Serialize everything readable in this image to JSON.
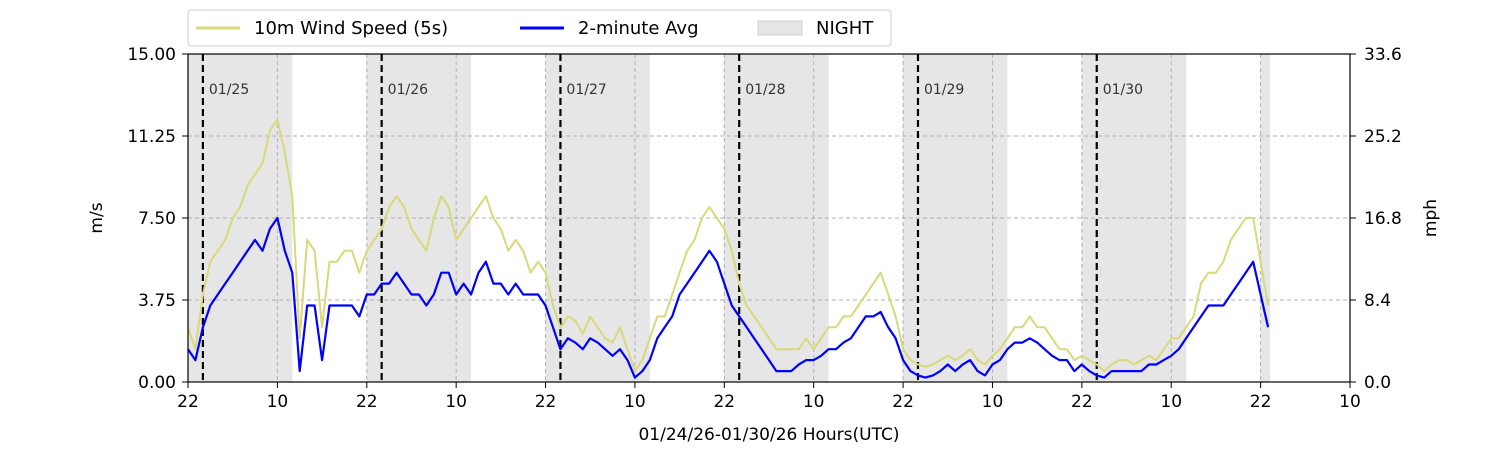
{
  "chart_data": {
    "type": "line",
    "x_title": "01/24/26-01/30/26  Hours(UTC)",
    "y_left_title": "m/s",
    "y_right_title": "mph",
    "ylim": [
      0,
      15
    ],
    "y_left_ticks": [
      "0.00",
      "3.75",
      "7.50",
      "11.25",
      "15.00"
    ],
    "y_right_ticks": [
      "0.0",
      "8.4",
      "16.8",
      "25.2",
      "33.6"
    ],
    "x_tick_labels": [
      "22",
      "10",
      "22",
      "10",
      "22",
      "10",
      "22",
      "10",
      "22",
      "10",
      "22",
      "10",
      "22",
      "10"
    ],
    "grid": true,
    "legend_position": "top-left (above plot)",
    "legend": [
      {
        "label": "10m Wind Speed (5s)",
        "color": "#d9d87a",
        "kind": "line"
      },
      {
        "label": "2-minute Avg",
        "color": "#0000ff",
        "kind": "line"
      },
      {
        "label": "NIGHT",
        "color": "#e6e6e6",
        "kind": "patch"
      }
    ],
    "day_markers": [
      {
        "label": "01/25",
        "day_offset": 2
      },
      {
        "label": "01/26",
        "day_offset": 26
      },
      {
        "label": "01/27",
        "day_offset": 50
      },
      {
        "label": "01/28",
        "day_offset": 74
      },
      {
        "label": "01/29",
        "day_offset": 98
      },
      {
        "label": "01/30",
        "day_offset": 122
      }
    ],
    "night_periods_hours": [
      [
        0,
        14
      ],
      [
        24,
        38
      ],
      [
        48,
        62
      ],
      [
        72,
        86
      ],
      [
        96,
        110
      ],
      [
        120,
        134
      ],
      [
        144,
        145.3
      ]
    ],
    "x_range_hours": [
      0,
      156
    ],
    "series": [
      {
        "name": "10m Wind Speed (5s)",
        "color": "#d9d87a",
        "x_hours": [
          0,
          1,
          2,
          3,
          4,
          5,
          6,
          7,
          8,
          9,
          10,
          11,
          12,
          13,
          14,
          15,
          16,
          17,
          18,
          19,
          20,
          21,
          22,
          23,
          24,
          25,
          26,
          27,
          28,
          29,
          30,
          31,
          32,
          33,
          34,
          35,
          36,
          37,
          38,
          39,
          40,
          41,
          42,
          43,
          44,
          45,
          46,
          47,
          48,
          49,
          50,
          51,
          52,
          53,
          54,
          55,
          56,
          57,
          58,
          59,
          60,
          61,
          62,
          63,
          64,
          65,
          66,
          67,
          68,
          69,
          70,
          71,
          72,
          73,
          74,
          75,
          76,
          77,
          78,
          79,
          80,
          81,
          82,
          83,
          84,
          85,
          86,
          87,
          88,
          89,
          90,
          91,
          92,
          93,
          94,
          95,
          96,
          97,
          98,
          99,
          100,
          101,
          102,
          103,
          104,
          105,
          106,
          107,
          108,
          109,
          110,
          111,
          112,
          113,
          114,
          115,
          116,
          117,
          118,
          119,
          120,
          121,
          122,
          123,
          124,
          125,
          126,
          127,
          128,
          129,
          130,
          131,
          132,
          133,
          134,
          135,
          136,
          137,
          138,
          139,
          140,
          141,
          142,
          143,
          144,
          145
        ],
        "values": [
          2.5,
          1.5,
          4.0,
          5.5,
          6.0,
          6.5,
          7.5,
          8.0,
          9.0,
          9.5,
          10.0,
          11.5,
          12.0,
          10.5,
          8.5,
          2.0,
          6.5,
          6.0,
          2.5,
          5.5,
          5.5,
          6.0,
          6.0,
          5.0,
          6.0,
          6.5,
          7.0,
          8.0,
          8.5,
          8.0,
          7.0,
          6.5,
          6.0,
          7.5,
          8.5,
          8.0,
          6.5,
          7.0,
          7.5,
          8.0,
          8.5,
          7.5,
          7.0,
          6.0,
          6.5,
          6.0,
          5.0,
          5.5,
          5.0,
          3.5,
          2.5,
          3.0,
          2.8,
          2.2,
          3.0,
          2.5,
          2.0,
          1.8,
          2.5,
          1.5,
          0.5,
          1.0,
          2.0,
          3.0,
          3.0,
          4.0,
          5.0,
          6.0,
          6.5,
          7.5,
          8.0,
          7.5,
          7.0,
          6.0,
          4.5,
          3.5,
          3.0,
          2.5,
          2.0,
          1.5,
          1.5,
          1.5,
          1.5,
          2.0,
          1.5,
          2.0,
          2.5,
          2.5,
          3.0,
          3.0,
          3.5,
          4.0,
          4.5,
          5.0,
          4.0,
          3.0,
          1.5,
          1.0,
          0.8,
          0.7,
          0.8,
          1.0,
          1.2,
          1.0,
          1.2,
          1.5,
          1.0,
          0.8,
          1.2,
          1.5,
          2.0,
          2.5,
          2.5,
          3.0,
          2.5,
          2.5,
          2.0,
          1.5,
          1.5,
          1.0,
          1.2,
          1.0,
          0.8,
          0.5,
          0.8,
          1.0,
          1.0,
          0.8,
          1.0,
          1.2,
          1.0,
          1.5,
          2.0,
          2.0,
          2.5,
          3.0,
          4.5,
          5.0,
          5.0,
          5.5,
          6.5,
          7.0,
          7.5,
          7.5,
          5.5,
          3.5
        ]
      },
      {
        "name": "2-minute Avg",
        "color": "#0000ff",
        "x_hours": [
          0,
          1,
          2,
          3,
          4,
          5,
          6,
          7,
          8,
          9,
          10,
          11,
          12,
          13,
          14,
          15,
          16,
          17,
          18,
          19,
          20,
          21,
          22,
          23,
          24,
          25,
          26,
          27,
          28,
          29,
          30,
          31,
          32,
          33,
          34,
          35,
          36,
          37,
          38,
          39,
          40,
          41,
          42,
          43,
          44,
          45,
          46,
          47,
          48,
          49,
          50,
          51,
          52,
          53,
          54,
          55,
          56,
          57,
          58,
          59,
          60,
          61,
          62,
          63,
          64,
          65,
          66,
          67,
          68,
          69,
          70,
          71,
          72,
          73,
          74,
          75,
          76,
          77,
          78,
          79,
          80,
          81,
          82,
          83,
          84,
          85,
          86,
          87,
          88,
          89,
          90,
          91,
          92,
          93,
          94,
          95,
          96,
          97,
          98,
          99,
          100,
          101,
          102,
          103,
          104,
          105,
          106,
          107,
          108,
          109,
          110,
          111,
          112,
          113,
          114,
          115,
          116,
          117,
          118,
          119,
          120,
          121,
          122,
          123,
          124,
          125,
          126,
          127,
          128,
          129,
          130,
          131,
          132,
          133,
          134,
          135,
          136,
          137,
          138,
          139,
          140,
          141,
          142,
          143,
          144,
          145
        ],
        "values": [
          1.5,
          1.0,
          2.5,
          3.5,
          4.0,
          4.5,
          5.0,
          5.5,
          6.0,
          6.5,
          6.0,
          7.0,
          7.5,
          6.0,
          5.0,
          0.5,
          3.5,
          3.5,
          1.0,
          3.5,
          3.5,
          3.5,
          3.5,
          3.0,
          4.0,
          4.0,
          4.5,
          4.5,
          5.0,
          4.5,
          4.0,
          4.0,
          3.5,
          4.0,
          5.0,
          5.0,
          4.0,
          4.5,
          4.0,
          5.0,
          5.5,
          4.5,
          4.5,
          4.0,
          4.5,
          4.0,
          4.0,
          4.0,
          3.5,
          2.5,
          1.5,
          2.0,
          1.8,
          1.5,
          2.0,
          1.8,
          1.5,
          1.2,
          1.5,
          1.0,
          0.2,
          0.5,
          1.0,
          2.0,
          2.5,
          3.0,
          4.0,
          4.5,
          5.0,
          5.5,
          6.0,
          5.5,
          4.5,
          3.5,
          3.0,
          2.5,
          2.0,
          1.5,
          1.0,
          0.5,
          0.5,
          0.5,
          0.8,
          1.0,
          1.0,
          1.2,
          1.5,
          1.5,
          1.8,
          2.0,
          2.5,
          3.0,
          3.0,
          3.2,
          2.5,
          2.0,
          1.0,
          0.5,
          0.3,
          0.2,
          0.3,
          0.5,
          0.8,
          0.5,
          0.8,
          1.0,
          0.5,
          0.3,
          0.8,
          1.0,
          1.5,
          1.8,
          1.8,
          2.0,
          1.8,
          1.5,
          1.2,
          1.0,
          1.0,
          0.5,
          0.8,
          0.5,
          0.3,
          0.2,
          0.5,
          0.5,
          0.5,
          0.5,
          0.5,
          0.8,
          0.8,
          1.0,
          1.2,
          1.5,
          2.0,
          2.5,
          3.0,
          3.5,
          3.5,
          3.5,
          4.0,
          4.5,
          5.0,
          5.5,
          4.0,
          2.5
        ]
      }
    ]
  }
}
